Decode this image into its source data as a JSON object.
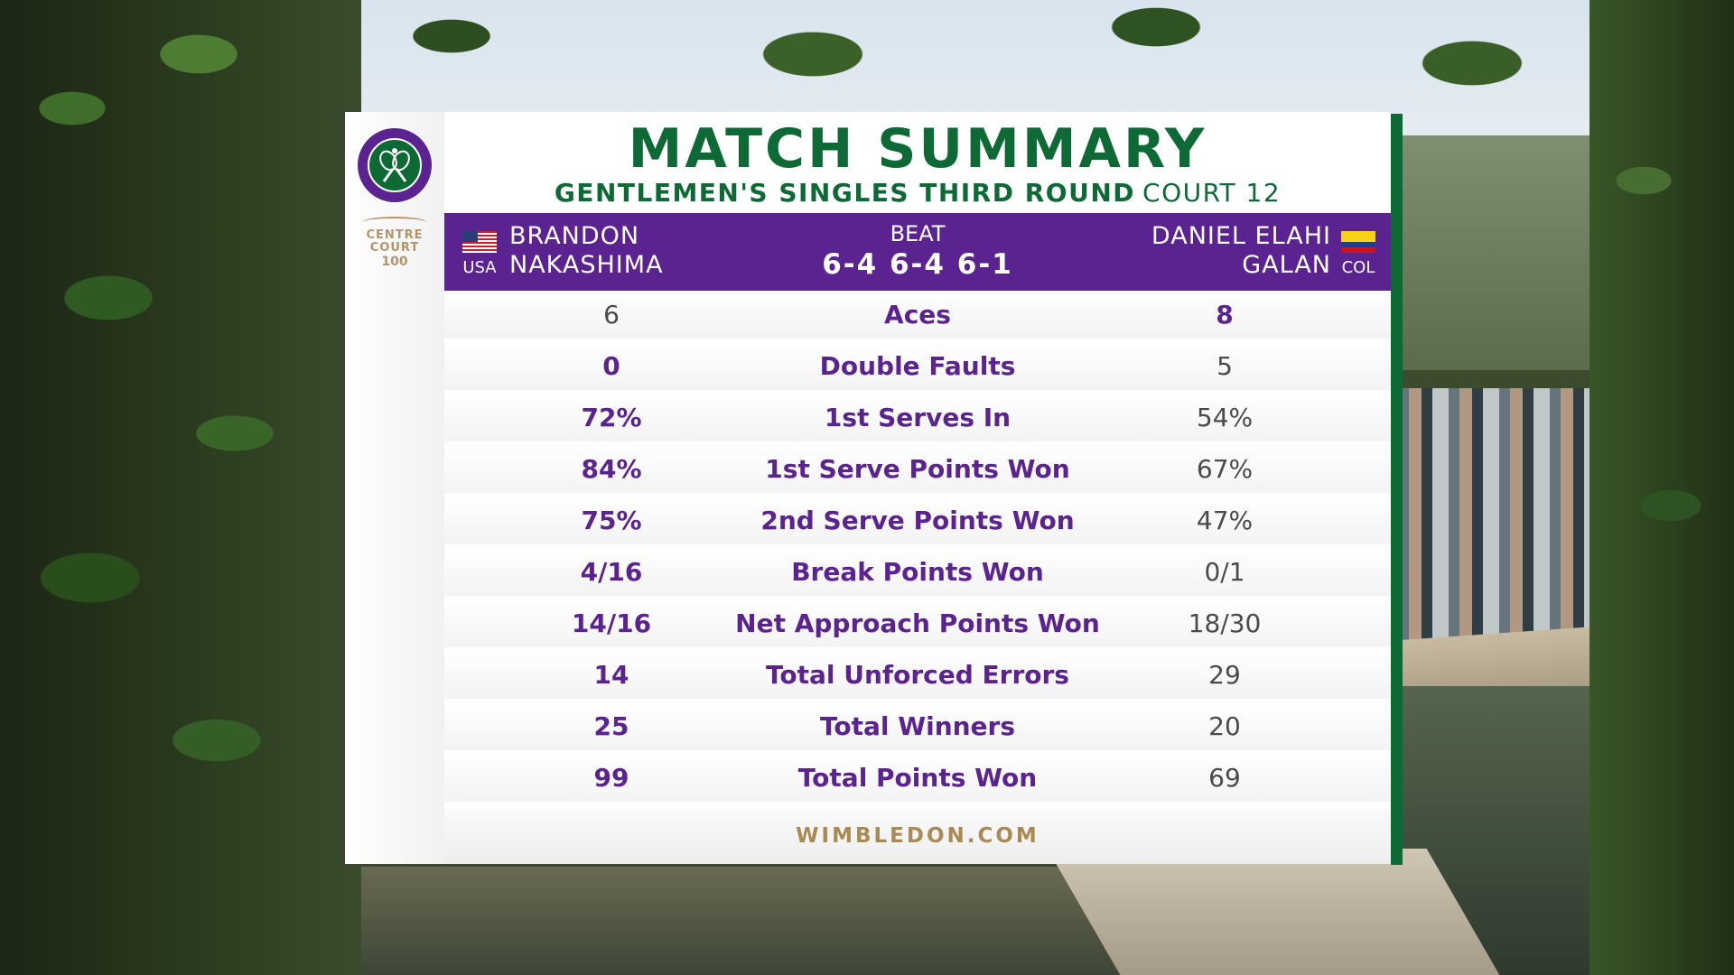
{
  "header": {
    "title": "MATCH SUMMARY",
    "round": "GENTLEMEN'S SINGLES THIRD ROUND",
    "court": "COURT 12"
  },
  "branding": {
    "badge_line1": "CENTRE",
    "badge_line2": "COURT",
    "badge_line3": "100",
    "footer_url": "WIMBLEDON.COM"
  },
  "players": {
    "left": {
      "first": "BRANDON",
      "last": "NAKASHIMA",
      "country": "USA"
    },
    "right": {
      "first": "DANIEL ELAHI",
      "last": "GALAN",
      "country": "COL"
    }
  },
  "result": {
    "verb": "BEAT",
    "score": "6-4 6-4 6-1"
  },
  "stats": [
    {
      "label": "Aces",
      "left": "6",
      "right": "8",
      "leader": "right"
    },
    {
      "label": "Double Faults",
      "left": "0",
      "right": "5",
      "leader": "left"
    },
    {
      "label": "1st Serves In",
      "left": "72%",
      "right": "54%",
      "leader": "left"
    },
    {
      "label": "1st Serve Points Won",
      "left": "84%",
      "right": "67%",
      "leader": "left"
    },
    {
      "label": "2nd Serve Points Won",
      "left": "75%",
      "right": "47%",
      "leader": "left"
    },
    {
      "label": "Break Points Won",
      "left": "4/16",
      "right": "0/1",
      "leader": "left"
    },
    {
      "label": "Net Approach Points Won",
      "left": "14/16",
      "right": "18/30",
      "leader": "left"
    },
    {
      "label": "Total Unforced Errors",
      "left": "14",
      "right": "29",
      "leader": "left"
    },
    {
      "label": "Total Winners",
      "left": "25",
      "right": "20",
      "leader": "left"
    },
    {
      "label": "Total Points Won",
      "left": "99",
      "right": "69",
      "leader": "left"
    }
  ],
  "colors": {
    "purple": "#5b2390",
    "green": "#0d6a34",
    "gold": "#a98a52"
  }
}
